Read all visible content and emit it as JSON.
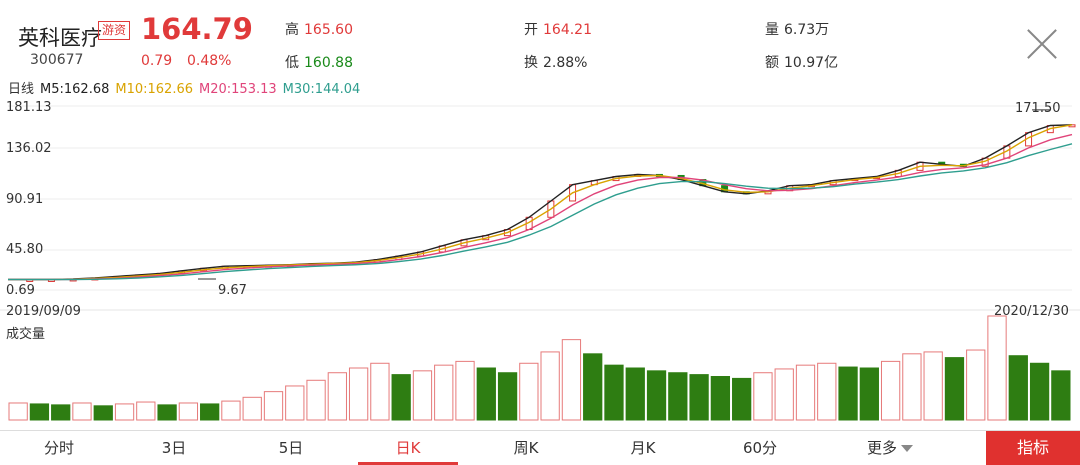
{
  "header": {
    "name": "英科医疗",
    "tag": "游资",
    "code": "300677",
    "price": "164.79",
    "change": "0.79",
    "change_pct": "0.48%",
    "stats": [
      {
        "label": "高",
        "value": "165.60",
        "color": "red"
      },
      {
        "label": "低",
        "value": "160.88",
        "color": "green"
      },
      {
        "label": "开",
        "value": "164.21",
        "color": "red"
      },
      {
        "label": "换",
        "value": "2.88%",
        "color": "plain"
      },
      {
        "label": "量",
        "value": "6.73万",
        "color": "plain"
      },
      {
        "label": "额",
        "value": "10.97亿",
        "color": "plain"
      }
    ]
  },
  "ma_line": {
    "period": "日线",
    "m5": "M5:162.68",
    "m10": "M10:162.66",
    "m20": "M20:153.13",
    "m30": "M30:144.04",
    "colors": {
      "m5": "#222222",
      "m10": "#d9a300",
      "m20": "#e0447a",
      "m30": "#2f9e8f"
    }
  },
  "chart_data": {
    "type": "line",
    "y_ticks": [
      "181.13",
      "136.02",
      "90.91",
      "45.80",
      "0.69"
    ],
    "ylim": [
      0.69,
      181.13
    ],
    "start_date": "2019/09/09",
    "end_date": "2020/12/30",
    "low_annotation": "9.67",
    "high_annotation": "171.50",
    "volume_label": "成交量",
    "series": [
      {
        "name": "M5",
        "values": [
          11.0,
          11.0,
          11.0,
          11.5,
          12.5,
          14.0,
          15.5,
          17.0,
          19.5,
          22.0,
          24.0,
          24.5,
          25.0,
          25.5,
          26.5,
          27.0,
          28.0,
          30.5,
          34.0,
          38.0,
          44.0,
          50.0,
          54.0,
          60.0,
          72.0,
          88.0,
          104.0,
          108.0,
          112.0,
          114.0,
          113.0,
          109.0,
          103.0,
          97.0,
          95.0,
          98.0,
          103.0,
          104.0,
          108.0,
          110.0,
          112.0,
          118.0,
          126.0,
          124.0,
          122.0,
          130.0,
          142.0,
          155.0,
          162.0,
          162.68
        ]
      },
      {
        "name": "M10",
        "values": [
          11.0,
          11.0,
          11.0,
          11.3,
          12.0,
          13.0,
          14.5,
          16.0,
          18.0,
          20.5,
          22.5,
          23.5,
          24.5,
          25.2,
          26.0,
          26.8,
          27.5,
          29.5,
          32.5,
          36.0,
          41.0,
          47.0,
          51.5,
          57.0,
          67.0,
          80.0,
          96.0,
          104.0,
          110.0,
          112.5,
          113.0,
          110.0,
          105.0,
          99.0,
          96.5,
          97.0,
          100.5,
          103.0,
          106.0,
          109.0,
          111.0,
          115.0,
          122.0,
          123.0,
          122.5,
          127.0,
          137.0,
          150.0,
          159.0,
          162.66
        ]
      },
      {
        "name": "M20",
        "values": [
          11.0,
          11.0,
          11.0,
          11.1,
          11.5,
          12.2,
          13.3,
          14.8,
          16.5,
          18.6,
          20.7,
          22.2,
          23.4,
          24.3,
          25.1,
          25.8,
          26.6,
          28.0,
          30.5,
          33.5,
          37.5,
          42.5,
          47.0,
          52.0,
          60.0,
          71.0,
          84.0,
          95.0,
          103.5,
          108.5,
          111.0,
          111.0,
          108.5,
          104.0,
          100.0,
          98.0,
          98.5,
          100.0,
          103.0,
          106.0,
          108.5,
          111.5,
          116.0,
          119.0,
          120.5,
          123.5,
          130.0,
          140.0,
          148.0,
          153.13
        ]
      },
      {
        "name": "M30",
        "values": [
          11.0,
          11.0,
          11.0,
          11.0,
          11.2,
          11.7,
          12.5,
          13.6,
          15.0,
          16.8,
          18.7,
          20.3,
          21.7,
          22.8,
          23.8,
          24.6,
          25.4,
          26.6,
          28.5,
          31.0,
          34.5,
          38.8,
          43.0,
          47.5,
          54.5,
          63.0,
          74.0,
          85.0,
          94.0,
          100.5,
          105.0,
          107.0,
          107.0,
          105.0,
          102.5,
          100.5,
          100.0,
          100.5,
          102.0,
          104.5,
          106.5,
          109.0,
          112.5,
          115.5,
          117.5,
          120.5,
          125.5,
          132.5,
          138.5,
          144.04
        ]
      }
    ],
    "volume_values": [
      18,
      17,
      16,
      18,
      15,
      17,
      19,
      16,
      18,
      17,
      20,
      24,
      30,
      36,
      42,
      50,
      55,
      60,
      48,
      52,
      58,
      62,
      55,
      50,
      60,
      72,
      85,
      70,
      58,
      55,
      52,
      50,
      48,
      46,
      44,
      50,
      54,
      58,
      60,
      56,
      55,
      62,
      70,
      72,
      66,
      74,
      110,
      68,
      60,
      52
    ]
  },
  "tabs": [
    {
      "label": "分时",
      "active": false
    },
    {
      "label": "3日",
      "active": false
    },
    {
      "label": "5日",
      "active": false
    },
    {
      "label": "日K",
      "active": true
    },
    {
      "label": "周K",
      "active": false
    },
    {
      "label": "月K",
      "active": false
    },
    {
      "label": "60分",
      "active": false
    },
    {
      "label": "更多",
      "active": false
    }
  ],
  "indicator_button": "指标"
}
